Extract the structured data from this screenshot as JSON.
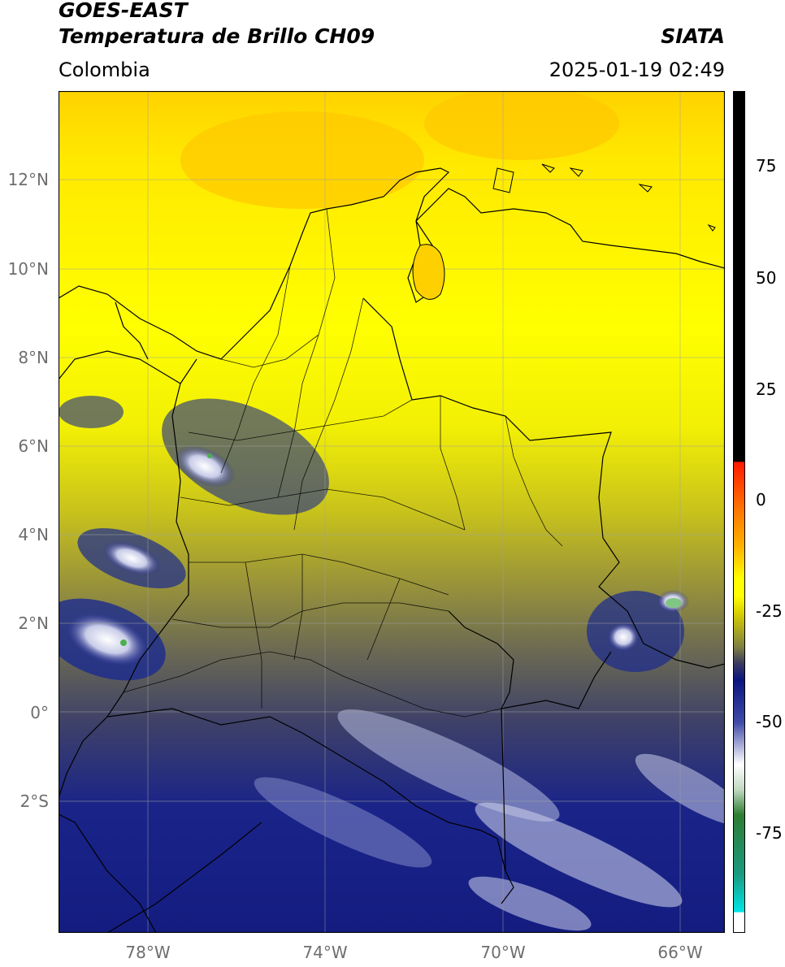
{
  "header": {
    "satellite": "GOES-EAST",
    "product": "Temperatura de Brillo CH09",
    "brand": "SIATA",
    "region": "Colombia",
    "datetime": "2025-01-19 02:49"
  },
  "map": {
    "lat_ticks": [
      "12°N",
      "10°N",
      "8°N",
      "6°N",
      "4°N",
      "2°N",
      "0°",
      "2°S"
    ],
    "lon_ticks": [
      "78°W",
      "74°W",
      "70°W",
      "66°W"
    ],
    "lat_range": [
      -5,
      14
    ],
    "lon_range": [
      -80,
      -65
    ]
  },
  "colorbar": {
    "ticks": [
      "75",
      "50",
      "25",
      "0",
      "-25",
      "-50",
      "-75"
    ],
    "range": [
      -100,
      90
    ],
    "colors": {
      "black": "#000000",
      "red": "#ff1a00",
      "orange": "#ffa500",
      "yellow": "#ffff00",
      "olive": "#808040",
      "navy": "#0a1480",
      "white": "#ffffff",
      "green": "#2e7d32",
      "cyan": "#00e5e5"
    }
  }
}
